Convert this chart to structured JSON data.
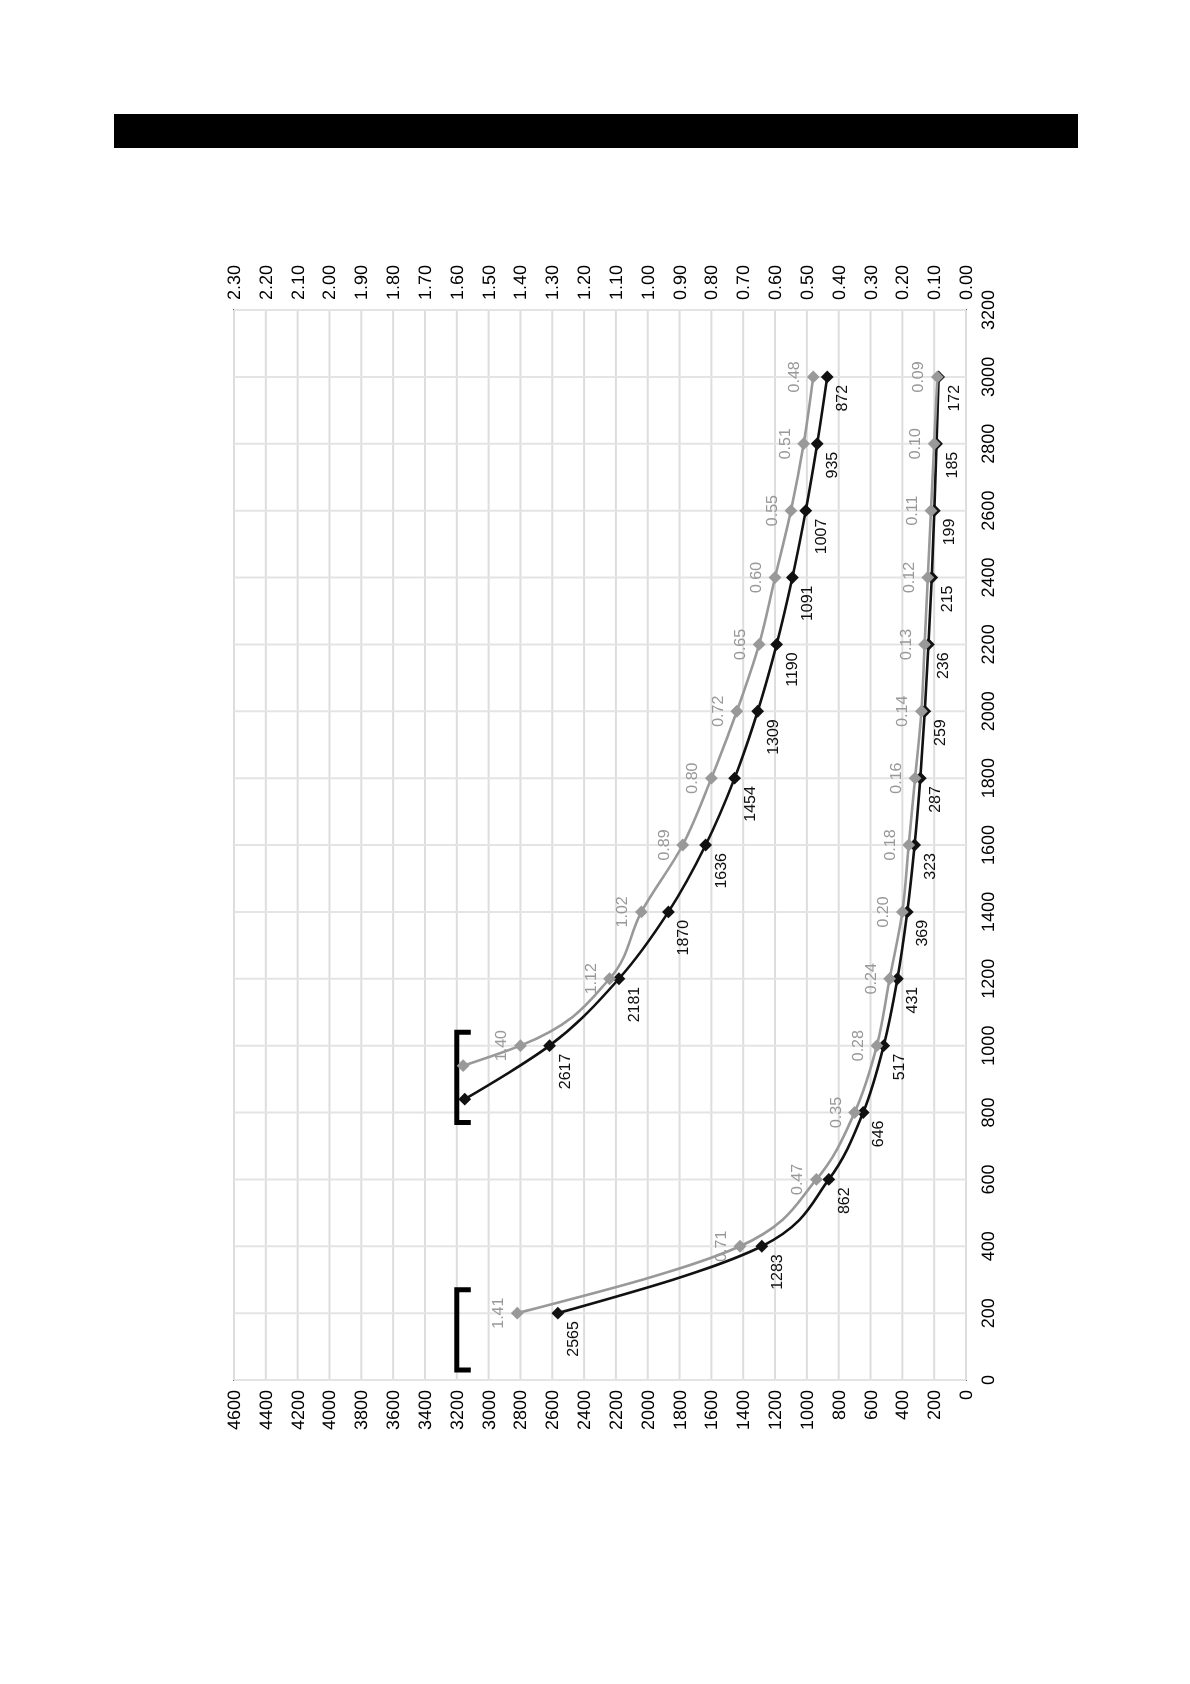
{
  "chart_data": {
    "type": "line",
    "orientation": "horizontal",
    "ylim": [
      0,
      3200
    ],
    "yticks": [
      0,
      200,
      400,
      600,
      800,
      1000,
      1200,
      1400,
      1600,
      1800,
      2000,
      2200,
      2400,
      2600,
      2800,
      3000,
      3200
    ],
    "xlim": [
      4600,
      0
    ],
    "xticks": [
      4600,
      4400,
      4200,
      4000,
      3800,
      3600,
      3400,
      3200,
      3000,
      2800,
      2600,
      2400,
      2200,
      2000,
      1800,
      1600,
      1400,
      1200,
      1000,
      800,
      600,
      400,
      200,
      0
    ],
    "x2lim": [
      2.3,
      0
    ],
    "x2ticks": [
      {
        "value": 2.3,
        "label": "2.30"
      },
      {
        "value": 2.2,
        "label": "2.20"
      },
      {
        "value": 2.1,
        "label": "2.10"
      },
      {
        "value": 2,
        "label": "2.00"
      },
      {
        "value": 1.9,
        "label": "1.90"
      },
      {
        "value": 1.8,
        "label": "1.80"
      },
      {
        "value": 1.7,
        "label": "1.70"
      },
      {
        "value": 1.6,
        "label": "1.60"
      },
      {
        "value": 1.5,
        "label": "1.50"
      },
      {
        "value": 1.4,
        "label": "1.40"
      },
      {
        "value": 1.3,
        "label": "1.30"
      },
      {
        "value": 1.2,
        "label": "1.20"
      },
      {
        "value": 1.1,
        "label": "1.10"
      },
      {
        "value": 1,
        "label": "1.00"
      },
      {
        "value": 0.9,
        "label": "0.90"
      },
      {
        "value": 0.8,
        "label": "0.80"
      },
      {
        "value": 0.7,
        "label": "0.70"
      },
      {
        "value": 0.6,
        "label": "0.60"
      },
      {
        "value": 0.5,
        "label": "0.50"
      },
      {
        "value": 0.4,
        "label": "0.40"
      },
      {
        "value": 0.3,
        "label": "0.30"
      },
      {
        "value": 0.2,
        "label": "0.20"
      },
      {
        "value": 0.1,
        "label": "0.10"
      },
      {
        "value": 0,
        "label": "0.00"
      }
    ],
    "grid": true,
    "marker": "diamond",
    "line_style": "solid",
    "series": [
      {
        "color": "#111111",
        "x": [
          200,
          400,
          600,
          800,
          1000,
          1200,
          1400,
          1600,
          1800,
          2000,
          2200,
          2400,
          2600,
          2800,
          3000
        ],
        "values": [
          2565,
          1283,
          862,
          646,
          517,
          431,
          369,
          323,
          287,
          259,
          236,
          215,
          199,
          185,
          172
        ],
        "value_labels": [
          "2565",
          "1283",
          "862",
          "646",
          "517",
          "431",
          "369",
          "323",
          "287",
          "259",
          "236",
          "215",
          "199",
          "185",
          "172"
        ]
      },
      {
        "color": "#999999",
        "axis": "x2",
        "x": [
          200,
          400,
          600,
          800,
          1000,
          1200,
          1400,
          1600,
          1800,
          2000,
          2200,
          2400,
          2600,
          2800,
          3000
        ],
        "values": [
          1.41,
          0.71,
          0.47,
          0.35,
          0.28,
          0.24,
          0.2,
          0.18,
          0.16,
          0.14,
          0.13,
          0.12,
          0.11,
          0.1,
          0.09
        ],
        "value_labels": [
          "1.41",
          "0.71",
          "0.47",
          "0.35",
          "0.28",
          "0.24",
          "0.20",
          "0.18",
          "0.16",
          "0.14",
          "0.13",
          "0.12",
          "0.11",
          "0.10",
          "0.09"
        ]
      },
      {
        "color": "#111111",
        "x": [
          840,
          1000,
          1200,
          1400,
          1600,
          1800,
          2000,
          2200,
          2400,
          2600,
          2800,
          3000
        ],
        "values": [
          3150,
          2617,
          2181,
          1870,
          1636,
          1454,
          1309,
          1190,
          1091,
          1007,
          935,
          872
        ],
        "value_labels": [
          null,
          "2617",
          "2181",
          "1870",
          "1636",
          "1454",
          "1309",
          "1190",
          "1091",
          "1007",
          "935",
          "872"
        ]
      },
      {
        "color": "#999999",
        "axis": "x2",
        "x": [
          940,
          1000,
          1200,
          1400,
          1600,
          1800,
          2000,
          2200,
          2400,
          2600,
          2800,
          3000
        ],
        "values": [
          1.58,
          1.4,
          1.12,
          1.02,
          0.89,
          0.8,
          0.72,
          0.65,
          0.6,
          0.55,
          0.51,
          0.48
        ],
        "value_labels": [
          null,
          "1.40",
          "1.12",
          "1.02",
          "0.89",
          "0.80",
          "0.72",
          "0.65",
          "0.60",
          "0.55",
          "0.51",
          "0.48"
        ]
      }
    ]
  }
}
